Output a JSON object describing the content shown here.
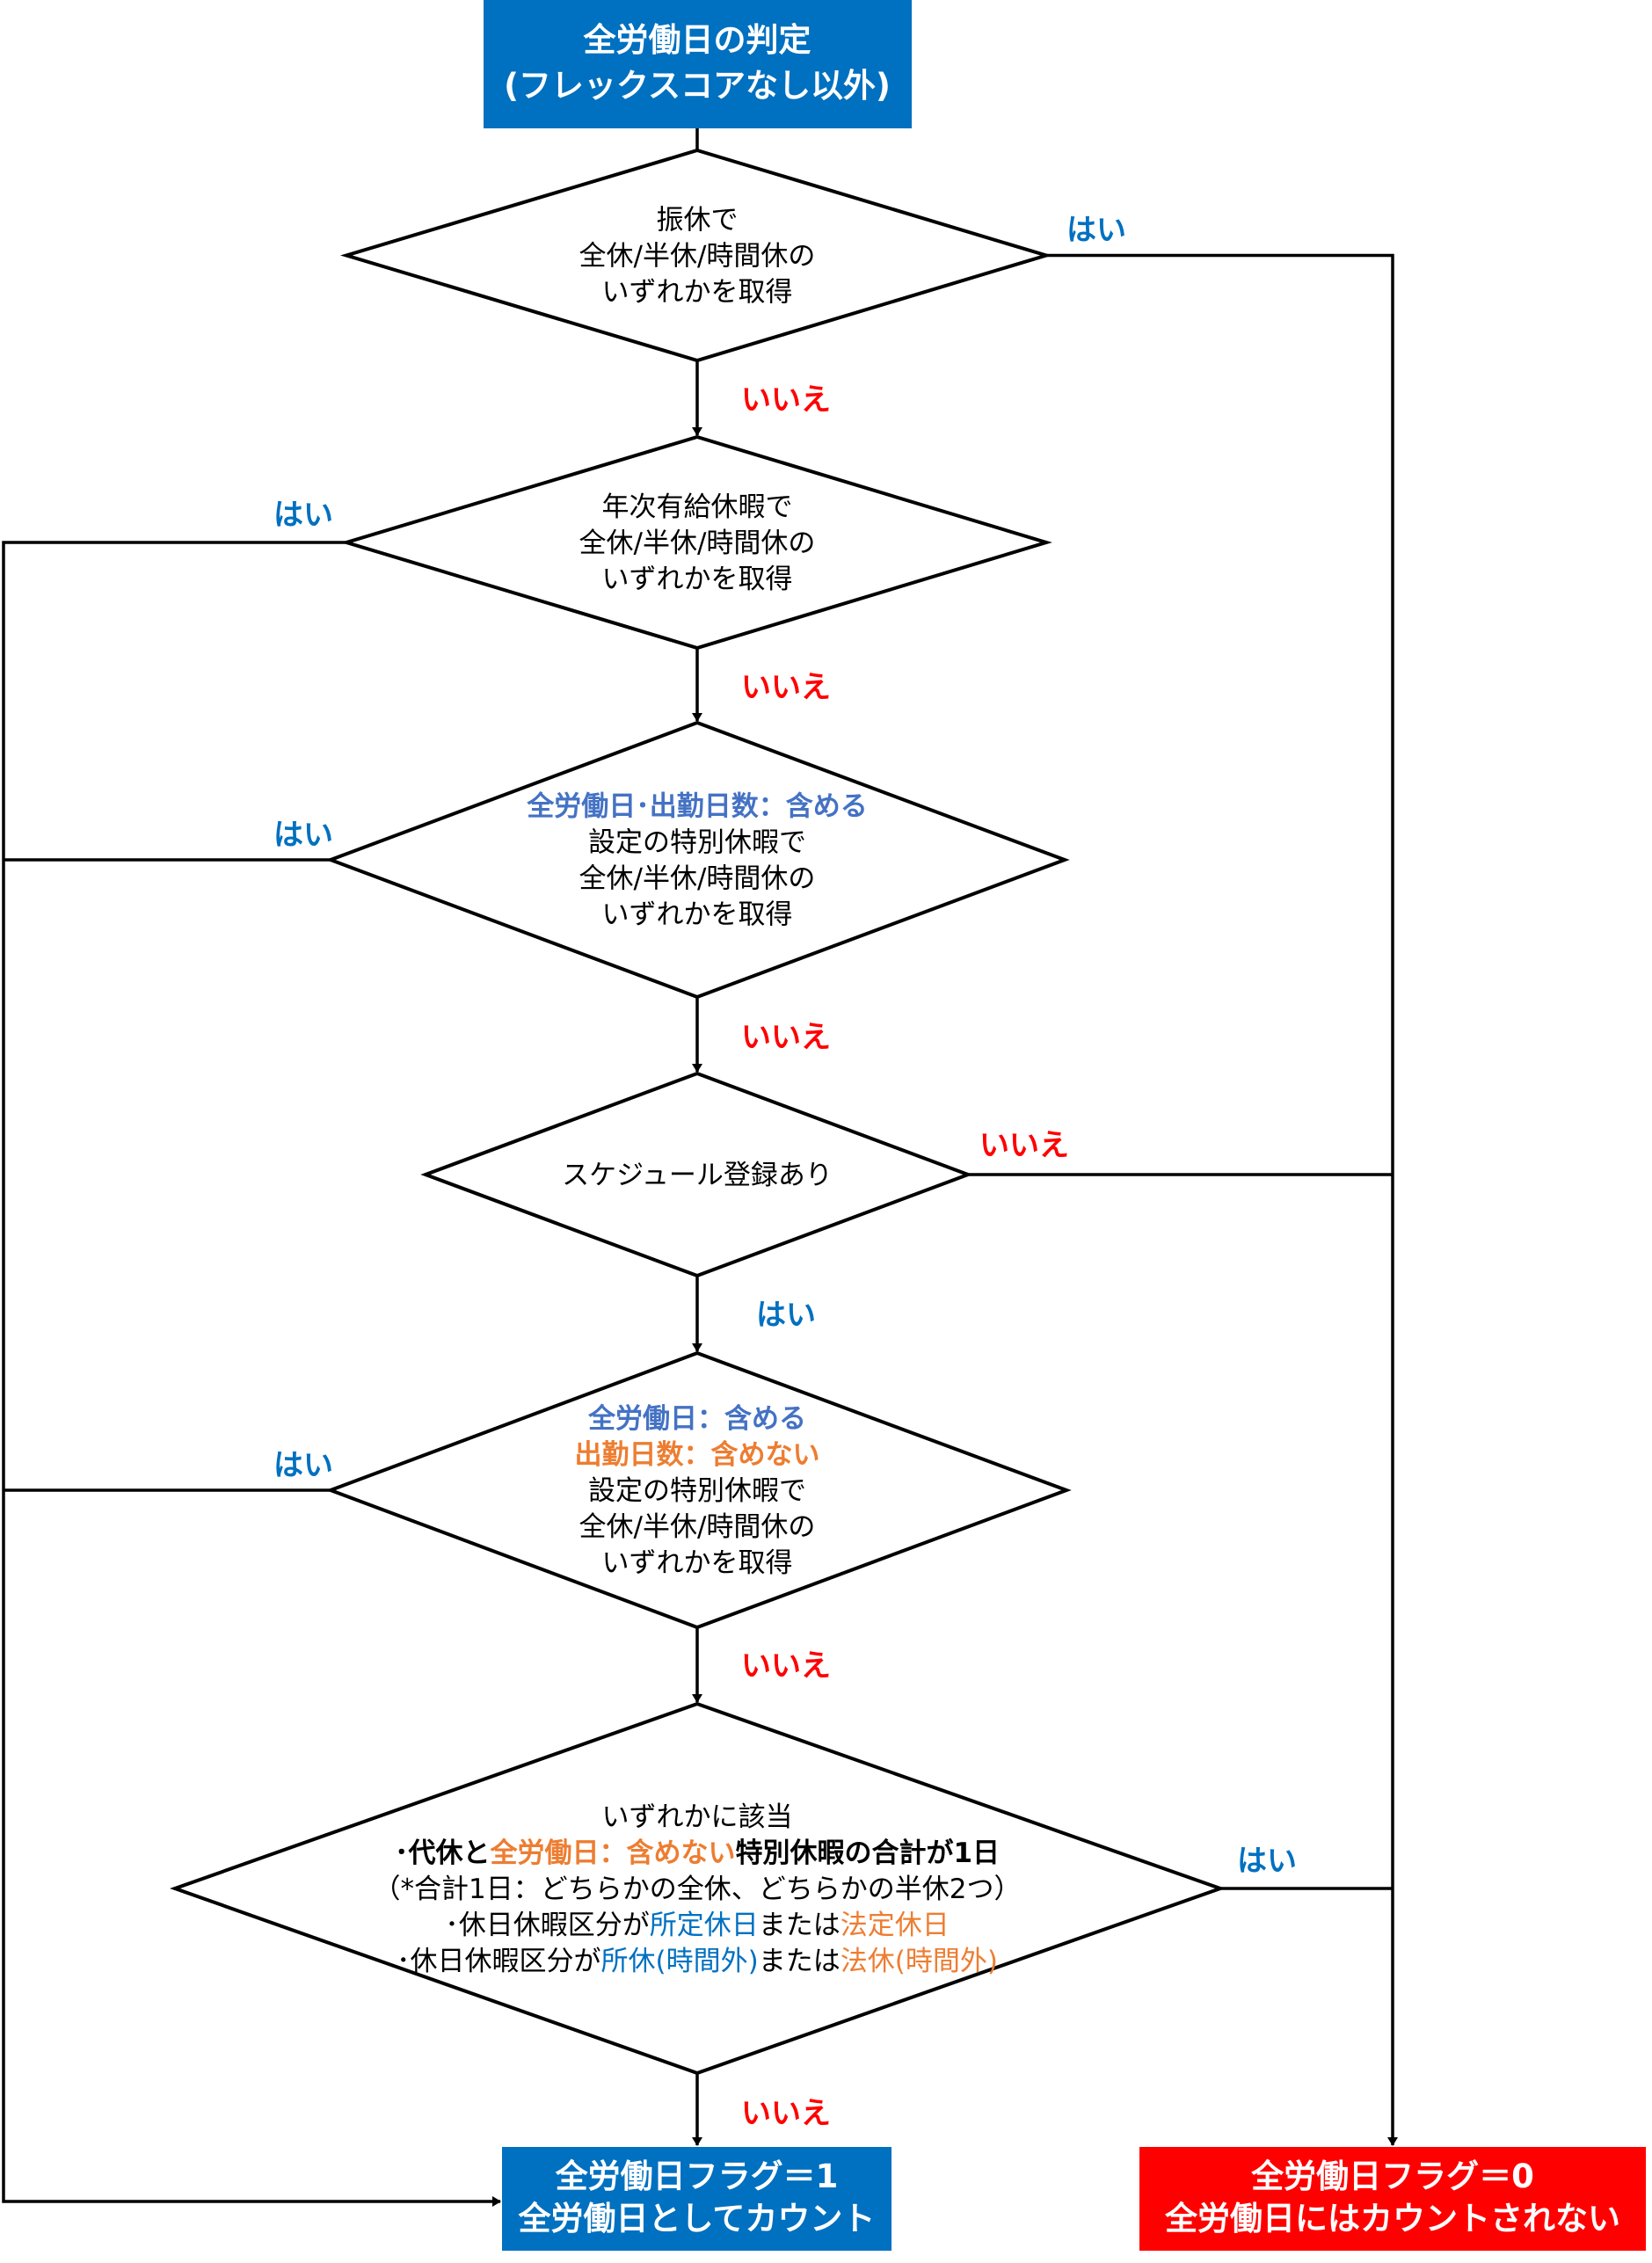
{
  "colors": {
    "primary_blue": "#0070C0",
    "light_blue": "#4472C4",
    "orange": "#ED7D31",
    "red": "#FF0000",
    "black": "#000000",
    "white": "#FFFFFF"
  },
  "start": {
    "lines": [
      "全労働日の判定",
      "(フレックスコアなし以外)"
    ]
  },
  "decisions": [
    {
      "lines": [
        [
          {
            "text": "振休で"
          }
        ],
        [
          {
            "text": "全休/半休/時間休の"
          }
        ],
        [
          {
            "text": "いずれかを取得"
          }
        ]
      ]
    },
    {
      "lines": [
        [
          {
            "text": "年次有給休暇で"
          }
        ],
        [
          {
            "text": "全休/半休/時間休の"
          }
        ],
        [
          {
            "text": "いずれかを取得"
          }
        ]
      ]
    },
    {
      "lines": [
        [
          {
            "text": "全労働日･出勤日数：含める",
            "color": "light_blue",
            "bold": true
          }
        ],
        [
          {
            "text": "設定の特別休暇で"
          }
        ],
        [
          {
            "text": "全休/半休/時間休の"
          }
        ],
        [
          {
            "text": "いずれかを取得"
          }
        ]
      ]
    },
    {
      "lines": [
        [
          {
            "text": "スケジュール登録あり"
          }
        ]
      ]
    },
    {
      "lines": [
        [
          {
            "text": "全労働日：含める",
            "color": "light_blue",
            "bold": true
          }
        ],
        [
          {
            "text": "出勤日数：含めない",
            "color": "orange",
            "bold": true
          }
        ],
        [
          {
            "text": "設定の特別休暇で"
          }
        ],
        [
          {
            "text": "全休/半休/時間休の"
          }
        ],
        [
          {
            "text": "いずれかを取得"
          }
        ]
      ]
    },
    {
      "lines": [
        [
          {
            "text": "いずれかに該当"
          }
        ],
        [
          {
            "text": "･代休と",
            "bold": true
          },
          {
            "text": "全労働日：含めない",
            "color": "orange",
            "bold": true
          },
          {
            "text": "特別休暇の合計が1日",
            "bold": true
          }
        ],
        [
          {
            "text": "（*合計1日：どちらかの全休、どちらかの半休2つ）"
          }
        ],
        [
          {
            "text": "･休日休暇区分が"
          },
          {
            "text": "所定休日",
            "color": "primary_blue"
          },
          {
            "text": "または"
          },
          {
            "text": "法定休日",
            "color": "orange"
          }
        ],
        [
          {
            "text": "･休日休暇区分が"
          },
          {
            "text": "所休(時間外)",
            "color": "primary_blue"
          },
          {
            "text": "または"
          },
          {
            "text": "法休(時間外)",
            "color": "orange"
          }
        ]
      ]
    }
  ],
  "edge_labels": {
    "yes": "はい",
    "no": "いいえ"
  },
  "results": {
    "count": {
      "lines": [
        "全労働日フラグ＝1",
        "全労働日としてカウント"
      ],
      "color": "primary_blue"
    },
    "not_count": {
      "lines": [
        "全労働日フラグ＝0",
        "全労働日にはカウントされない"
      ],
      "color": "red"
    }
  }
}
